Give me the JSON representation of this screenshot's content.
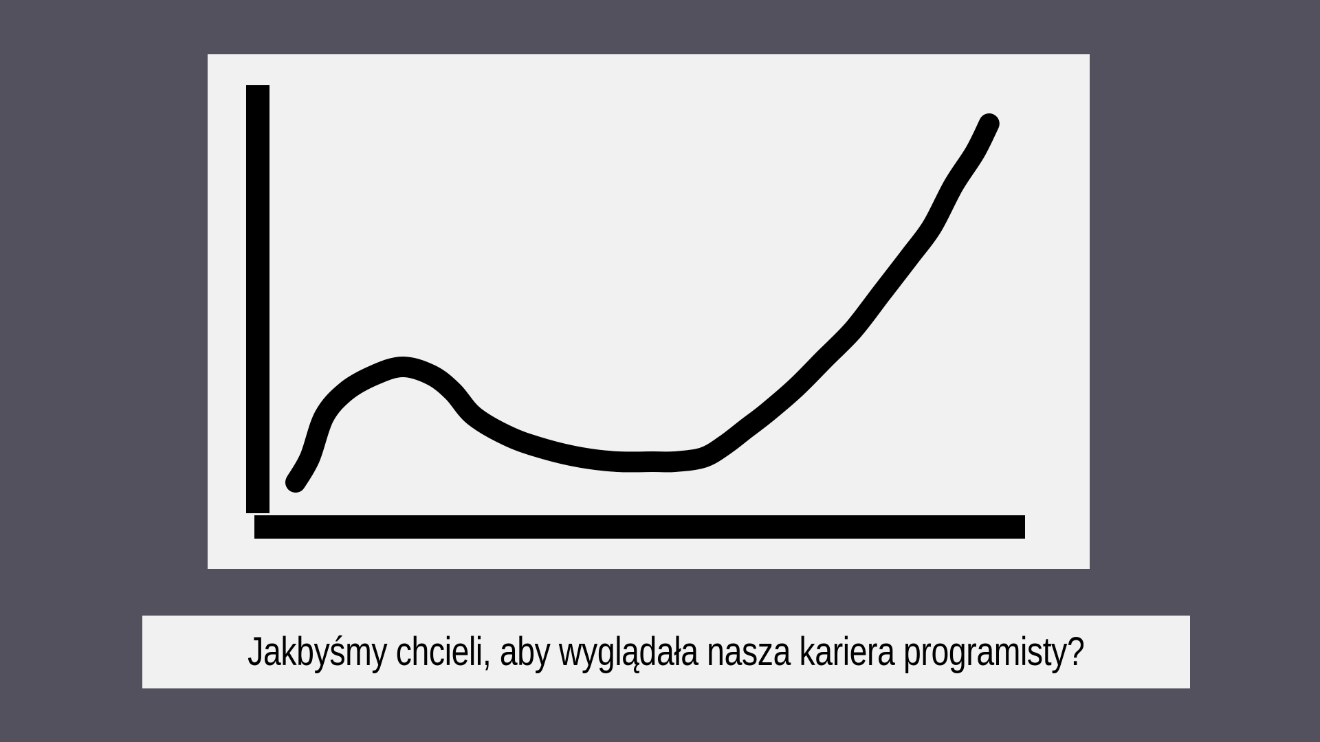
{
  "colors": {
    "background": "#53515e",
    "panel": "#f1f1f1",
    "ink": "#000000"
  },
  "caption": "Jakbyśmy chcieli, aby wyglądała nasza kariera programisty?",
  "chart_data": {
    "type": "line",
    "style": "hand-drawn",
    "title": "",
    "xlabel": "",
    "ylabel": "",
    "axis_ticks": false,
    "grid": false,
    "legend": false,
    "xlim": [
      0,
      100
    ],
    "ylim": [
      0,
      100
    ],
    "series": [
      {
        "x": [
          0,
          2,
          4,
          7,
          11,
          15,
          19,
          22,
          25,
          30,
          35,
          40,
          45,
          50,
          53,
          57,
          60,
          63,
          66,
          70,
          74,
          78,
          82,
          86,
          89,
          92,
          95,
          97
        ],
        "values": [
          8,
          14,
          24,
          30,
          34,
          36,
          34,
          30,
          24,
          19,
          16,
          14,
          13,
          13,
          13,
          14,
          17,
          21,
          25,
          31,
          38,
          45,
          54,
          63,
          70,
          80,
          88,
          95
        ]
      }
    ]
  }
}
